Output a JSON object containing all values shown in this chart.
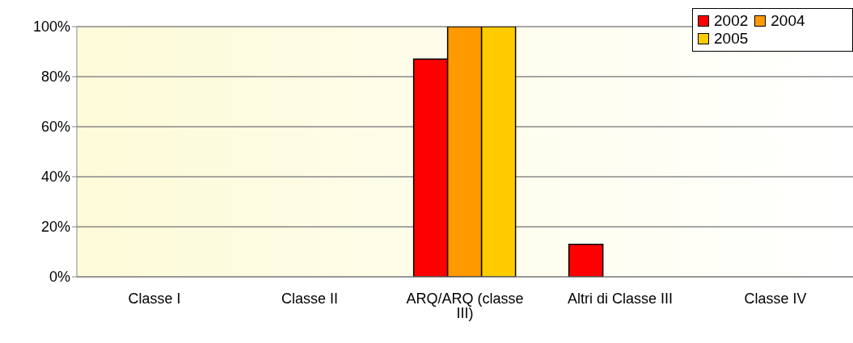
{
  "chart_data": {
    "type": "bar",
    "categories": [
      "Classe I",
      "Classe II",
      "ARQ/ARQ (classe III)",
      "Altri di Classe III",
      "Classe IV"
    ],
    "series": [
      {
        "name": "2002",
        "color": "#ff0000",
        "values": [
          0,
          0,
          87,
          13,
          0
        ]
      },
      {
        "name": "2004",
        "color": "#ff9900",
        "values": [
          0,
          0,
          100,
          0,
          0
        ]
      },
      {
        "name": "2005",
        "color": "#ffcc00",
        "values": [
          0,
          0,
          100,
          0,
          0
        ]
      }
    ],
    "ylim": [
      0,
      100
    ],
    "yticks": [
      {
        "value": 0,
        "label": "0%"
      },
      {
        "value": 20,
        "label": "20%"
      },
      {
        "value": 40,
        "label": "40%"
      },
      {
        "value": 60,
        "label": "60%"
      },
      {
        "value": 80,
        "label": "80%"
      },
      {
        "value": 100,
        "label": "100%"
      }
    ],
    "grid": "y",
    "legend": "top right"
  }
}
